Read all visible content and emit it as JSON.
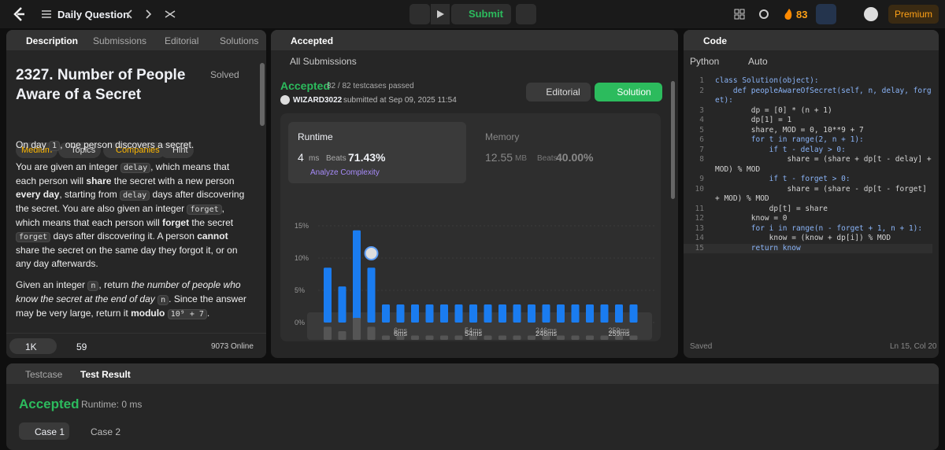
{
  "topbar": {
    "title": "Daily Question",
    "submit": "Submit",
    "streak": "83",
    "premium": "Premium"
  },
  "left": {
    "tabs": [
      "Description",
      "Submissions",
      "Editorial",
      "Solutions"
    ],
    "problem_title": "2327. Number of People Aware of a Secret",
    "status": "Solved",
    "tags": [
      "Medium",
      "Topics",
      "Companies",
      "Hint"
    ],
    "paragraphs": [
      [
        {
          "t": "On day "
        },
        {
          "t": "1",
          "s": "code"
        },
        {
          "t": ", one person discovers a secret."
        }
      ],
      [
        {
          "t": "You are given an integer "
        },
        {
          "t": "delay",
          "s": "code"
        },
        {
          "t": ", which means that each person will "
        },
        {
          "t": "share",
          "s": "b"
        },
        {
          "t": " the secret with a new person "
        },
        {
          "t": "every day",
          "s": "b"
        },
        {
          "t": ", starting from "
        },
        {
          "t": "delay",
          "s": "code"
        },
        {
          "t": " days after discovering the secret. You are also given an integer "
        },
        {
          "t": "forget",
          "s": "code"
        },
        {
          "t": ", which means that each person will "
        },
        {
          "t": "forget",
          "s": "b"
        },
        {
          "t": " the secret "
        },
        {
          "t": "forget",
          "s": "code"
        },
        {
          "t": " days after discovering it. A person "
        },
        {
          "t": "cannot",
          "s": "b"
        },
        {
          "t": " share the secret on the same day they forgot it, or on any day afterwards."
        }
      ],
      [
        {
          "t": "Given an integer "
        },
        {
          "t": "n",
          "s": "code"
        },
        {
          "t": ", return "
        },
        {
          "t": "the number of people who know the secret at the end of day ",
          "s": "i"
        },
        {
          "t": "n",
          "s": "code"
        },
        {
          "t": ". Since the answer may be very large, return it "
        },
        {
          "t": "modulo",
          "s": "b"
        },
        {
          "t": " "
        },
        {
          "t": "10⁹ + 7",
          "s": "code"
        },
        {
          "t": "."
        }
      ]
    ],
    "footer": {
      "likes": "1K",
      "comments": "59",
      "online": "9073 Online"
    }
  },
  "middle": {
    "tab": "Accepted",
    "back": "All Submissions",
    "result": "Accepted",
    "testcases": "82 / 82 testcases passed",
    "user": "WIZARD3022",
    "submitted": "submitted at Sep 09, 2025 11:54",
    "editorial": "Editorial",
    "solution": "Solution",
    "runtime": {
      "label": "Runtime",
      "value": "4",
      "unit": "ms",
      "beats_label": "Beats",
      "beats": "71.43%",
      "analyze": "Analyze Complexity"
    },
    "memory": {
      "label": "Memory",
      "value": "12.55",
      "unit": "MB",
      "beats_label": "Beats",
      "beats": "40.00%"
    }
  },
  "chart_data": {
    "type": "bar",
    "categories": [
      null,
      null,
      null,
      null,
      null,
      "6ms",
      null,
      null,
      null,
      null,
      "54ms",
      null,
      null,
      null,
      null,
      "246ms",
      null,
      null,
      null,
      null,
      "259ms",
      null
    ],
    "values": [
      8.5,
      5.6,
      14.3,
      8.5,
      2.8,
      2.8,
      2.8,
      2.8,
      2.8,
      2.8,
      2.8,
      2.8,
      2.8,
      2.8,
      2.8,
      2.8,
      2.8,
      2.8,
      2.8,
      2.8,
      2.8,
      2.8
    ],
    "color": "#1a7cf0",
    "ylim": [
      0,
      15
    ],
    "yticks": [
      {
        "value": 0,
        "label": "0%"
      },
      {
        "value": 5,
        "label": "5%"
      },
      {
        "value": 10,
        "label": "10%"
      },
      {
        "value": 15,
        "label": "15%"
      }
    ],
    "grid": true
  },
  "right": {
    "tab": "Code",
    "language": "Python",
    "mode": "Auto",
    "line_numbers": [
      1,
      2,
      3,
      4,
      5,
      6,
      7,
      8,
      9,
      10,
      11,
      12,
      13,
      14,
      15
    ],
    "code_lines": [
      "class Solution(object):",
      "    def peopleAwareOfSecret(self, n, delay, forget):",
      "        dp = [0] * (n + 1)",
      "        dp[1] = 1",
      "        share, MOD = 0, 10**9 + 7",
      "        for t in range(2, n + 1):",
      "            if t - delay > 0:",
      "                share = (share + dp[t - delay] + MOD) % MOD",
      "            if t - forget > 0:",
      "                share = (share - dp[t - forget] + MOD) % MOD",
      "            dp[t] = share",
      "        know = 0",
      "        for i in range(n - forget + 1, n + 1):",
      "            know = (know + dp[i]) % MOD",
      "        return know"
    ],
    "saved": "Saved",
    "cursor": "Ln 15, Col 20"
  },
  "bottom": {
    "tabs": [
      "Testcase",
      "Test Result"
    ],
    "result": "Accepted",
    "runtime": "Runtime: 0 ms",
    "cases": [
      "Case 1",
      "Case 2"
    ]
  }
}
